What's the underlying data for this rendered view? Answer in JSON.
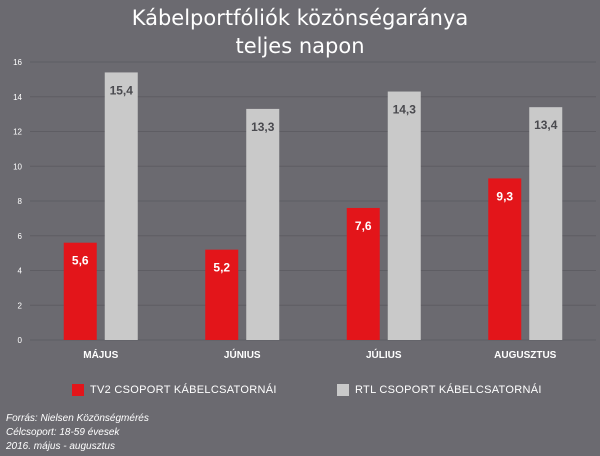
{
  "title_lines": [
    "Kábelportfóliók közönségaránya",
    "teljes napon"
  ],
  "colors": {
    "background": "#6b6a70",
    "tv2": "#e3151a",
    "rtl": "#c9c9c9",
    "text": "#ffffff",
    "grid": "#5e5d63"
  },
  "chart_data": {
    "type": "bar",
    "categories": [
      "MÁJUS",
      "JÚNIUS",
      "JÚLIUS",
      "AUGUSZTUS"
    ],
    "series": [
      {
        "name": "TV2 CSOPORT KÁBELCSATORNÁI",
        "values": [
          5.6,
          5.2,
          7.6,
          9.3
        ],
        "labels": [
          "5,6",
          "5,2",
          "7,6",
          "9,3"
        ],
        "color": "#e3151a"
      },
      {
        "name": "RTL CSOPORT KÁBELCSATORNÁI",
        "values": [
          15.4,
          13.3,
          14.3,
          13.4
        ],
        "labels": [
          "15,4",
          "13,3",
          "14,3",
          "13,4"
        ],
        "color": "#c9c9c9"
      }
    ],
    "ylim": [
      0,
      16
    ],
    "yticks": [
      0,
      2,
      4,
      6,
      8,
      10,
      12,
      14,
      16
    ],
    "grid": true,
    "legend_position": "bottom"
  },
  "legend": [
    {
      "label": "TV2 CSOPORT KÁBELCSATORNÁI",
      "color": "#e3151a"
    },
    {
      "label": "RTL CSOPORT KÁBELCSATORNÁI",
      "color": "#c9c9c9"
    }
  ],
  "source_lines": [
    "Forrás: Nielsen Közönségmérés",
    "Célcsoport: 18-59 évesek",
    "2016. május - augusztus"
  ]
}
